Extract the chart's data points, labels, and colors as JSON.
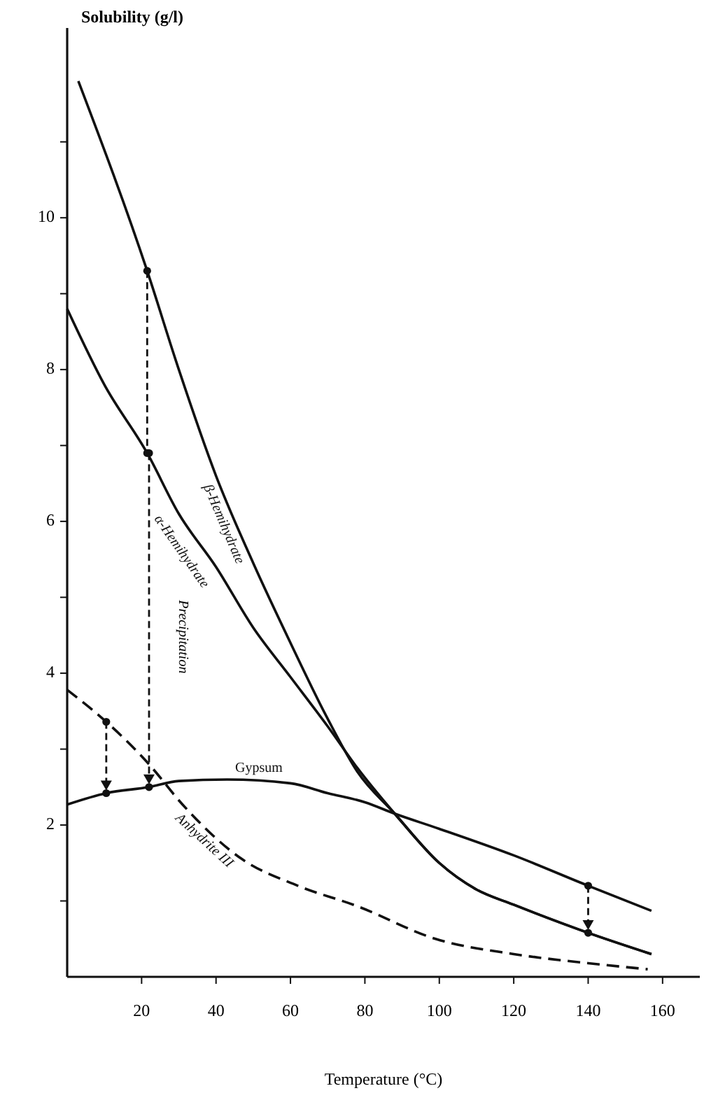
{
  "chart_data": {
    "type": "line",
    "xlabel": "Temperature (°C)",
    "ylabel": "Solubility (g/l)",
    "xlim": [
      0,
      170
    ],
    "xticks": [
      20,
      40,
      60,
      80,
      100,
      120,
      140,
      160
    ],
    "ylim": [
      0,
      12.5
    ],
    "yticks": [
      {
        "value": 1,
        "label": null
      },
      2,
      {
        "value": 3,
        "label": null
      },
      4,
      {
        "value": 5,
        "label": null
      },
      6,
      {
        "value": 7,
        "label": null
      },
      8,
      {
        "value": 9,
        "label": null
      },
      10,
      {
        "value": 11,
        "label": null
      }
    ],
    "grid": false,
    "series": [
      {
        "name": "β-Hemihydrate",
        "color": "#111111",
        "line_style": "solid",
        "x": [
          3,
          21.5,
          30,
          40,
          50,
          60,
          70,
          78,
          88,
          100,
          110,
          120,
          140,
          157
        ],
        "values": [
          11.8,
          9.3,
          8.0,
          6.6,
          5.45,
          4.4,
          3.4,
          2.7,
          2.15,
          1.5,
          1.15,
          0.95,
          0.58,
          0.3
        ]
      },
      {
        "name": "α-Hemihydrate",
        "color": "#111111",
        "line_style": "solid",
        "x": [
          0,
          10,
          21.5,
          30,
          40,
          50,
          60,
          70,
          78,
          88,
          100,
          110,
          120,
          140,
          157
        ],
        "values": [
          8.8,
          7.8,
          6.9,
          6.1,
          5.4,
          4.6,
          3.95,
          3.3,
          2.75,
          2.15,
          1.5,
          1.15,
          0.95,
          0.58,
          0.3
        ]
      },
      {
        "name": "Gypsum",
        "color": "#111111",
        "line_style": "solid",
        "x": [
          0,
          10.5,
          22,
          30,
          43,
          60,
          70,
          80,
          88,
          100,
          120,
          140,
          157
        ],
        "values": [
          2.27,
          2.42,
          2.5,
          2.58,
          2.6,
          2.55,
          2.42,
          2.3,
          2.15,
          1.95,
          1.6,
          1.2,
          0.87
        ]
      },
      {
        "name": "Anhydrite III",
        "color": "#111111",
        "line_style": "dashed",
        "x": [
          0,
          10.5,
          22,
          31,
          47,
          62,
          78,
          99,
          120,
          140,
          156
        ],
        "values": [
          3.78,
          3.36,
          2.8,
          2.27,
          1.55,
          1.2,
          0.93,
          0.5,
          0.3,
          0.18,
          0.1
        ]
      }
    ],
    "annotations": [
      "Precipitation"
    ]
  }
}
